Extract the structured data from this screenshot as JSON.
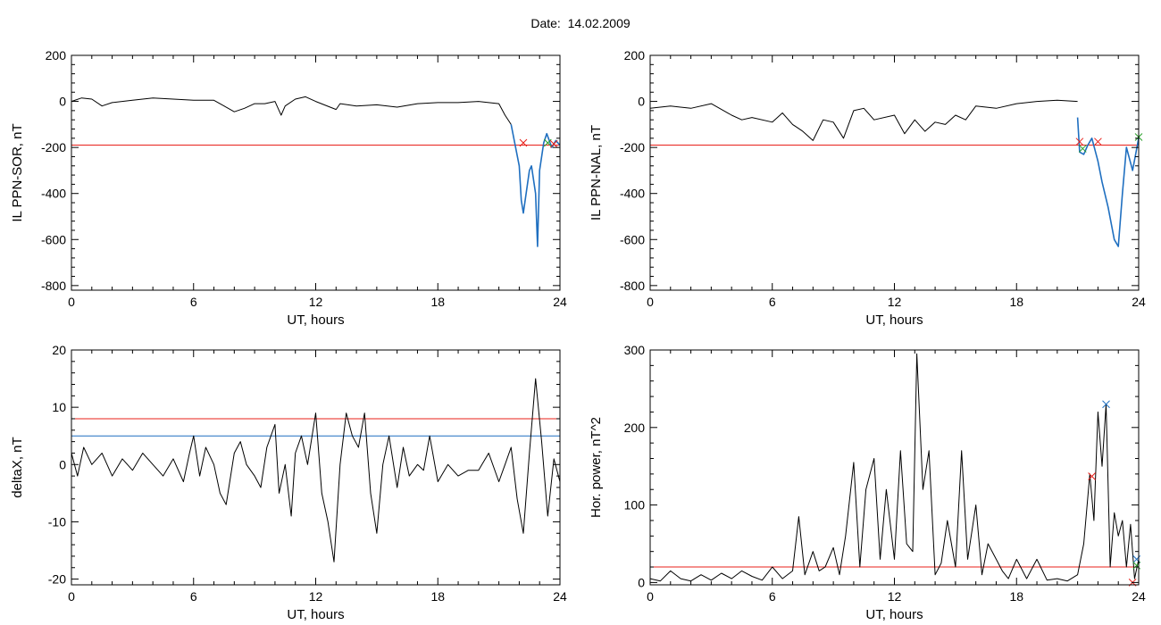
{
  "figure": {
    "title": "Date:  14.02.2009"
  },
  "colors": {
    "line": "#000000",
    "threshold_red": "#e8201a",
    "threshold_blue": "#1f6fc0",
    "marker_green": "#2aa02a",
    "overlay_blue": "#1f6fc0"
  },
  "chart_data": [
    {
      "id": "sor",
      "type": "line",
      "ylabel": "IL PPN-SOR, nT",
      "xlabel": "UT, hours",
      "xlim": [
        0,
        24
      ],
      "ylim": [
        -820,
        200
      ],
      "xticks": [
        0,
        6,
        12,
        18,
        24
      ],
      "yticks": [
        -800,
        -600,
        -400,
        -200,
        0,
        200
      ],
      "xtick_labels": [
        "0",
        "6",
        "12",
        "18",
        "24"
      ],
      "ytick_labels": [
        "-800",
        "-600",
        "-400",
        "-200",
        "0",
        "200"
      ],
      "thresholds": [
        {
          "y": -190,
          "color": "red"
        }
      ],
      "series": [
        {
          "color": "black",
          "x": [
            0,
            0.5,
            1,
            1.5,
            2,
            3,
            4,
            5,
            6,
            7,
            7.5,
            8,
            8.5,
            9,
            9.5,
            10,
            10.3,
            10.5,
            11,
            11.5,
            12,
            13,
            13.2,
            14,
            15,
            16,
            17,
            18,
            19,
            20,
            21,
            21.3,
            21.6
          ],
          "y": [
            0,
            15,
            10,
            -20,
            -5,
            5,
            15,
            10,
            5,
            5,
            -20,
            -45,
            -30,
            -10,
            -10,
            0,
            -60,
            -20,
            10,
            20,
            0,
            -35,
            -10,
            -20,
            -15,
            -25,
            -10,
            -5,
            -5,
            0,
            -10,
            -60,
            -100
          ]
        },
        {
          "color": "blue",
          "x": [
            21.6,
            22,
            22.1,
            22.2,
            22.5,
            22.6,
            22.8,
            22.9,
            23,
            23.2,
            23.35,
            23.6,
            23.8,
            24
          ],
          "y": [
            -100,
            -280,
            -430,
            -485,
            -300,
            -280,
            -400,
            -630,
            -300,
            -180,
            -140,
            -200,
            -170,
            -190
          ]
        }
      ],
      "markers": [
        {
          "x": 22.2,
          "y": -180,
          "color": "red",
          "symbol": "x"
        },
        {
          "x": 23.4,
          "y": -180,
          "color": "green",
          "symbol": "x"
        },
        {
          "x": 23.7,
          "y": -185,
          "color": "red",
          "symbol": "x"
        }
      ]
    },
    {
      "id": "nal",
      "type": "line",
      "ylabel": "IL PPN-NAL, nT",
      "xlabel": "UT, hours",
      "xlim": [
        0,
        24
      ],
      "ylim": [
        -820,
        200
      ],
      "xticks": [
        0,
        6,
        12,
        18,
        24
      ],
      "yticks": [
        -800,
        -600,
        -400,
        -200,
        0,
        200
      ],
      "xtick_labels": [
        "0",
        "6",
        "12",
        "18",
        "24"
      ],
      "ytick_labels": [
        "-800",
        "-600",
        "-400",
        "-200",
        "0",
        "200"
      ],
      "thresholds": [
        {
          "y": -190,
          "color": "red"
        }
      ],
      "series": [
        {
          "color": "black",
          "x": [
            0,
            1,
            2,
            3,
            4,
            4.5,
            5,
            6,
            6.5,
            7,
            7.5,
            8,
            8.5,
            9,
            9.5,
            10,
            10.5,
            11,
            12,
            12.5,
            13,
            13.5,
            14,
            14.5,
            15,
            15.5,
            16,
            17,
            18,
            19,
            20,
            21
          ],
          "y": [
            -30,
            -20,
            -30,
            -10,
            -60,
            -80,
            -70,
            -90,
            -50,
            -100,
            -130,
            -170,
            -80,
            -90,
            -160,
            -40,
            -30,
            -80,
            -60,
            -140,
            -80,
            -130,
            -90,
            -100,
            -60,
            -80,
            -20,
            -30,
            -10,
            0,
            5,
            0
          ]
        },
        {
          "color": "blue",
          "x": [
            21,
            21.1,
            21.3,
            21.5,
            21.7,
            22,
            22.2,
            22.5,
            22.8,
            23,
            23.2,
            23.4,
            23.7,
            24
          ],
          "y": [
            -70,
            -220,
            -230,
            -190,
            -160,
            -260,
            -350,
            -460,
            -600,
            -630,
            -400,
            -200,
            -300,
            -160
          ]
        }
      ],
      "markers": [
        {
          "x": 21.1,
          "y": -175,
          "color": "red",
          "symbol": "x"
        },
        {
          "x": 21.25,
          "y": -205,
          "color": "green",
          "symbol": "x"
        },
        {
          "x": 22.0,
          "y": -175,
          "color": "red",
          "symbol": "x"
        },
        {
          "x": 24.0,
          "y": -155,
          "color": "green",
          "symbol": "x"
        }
      ]
    },
    {
      "id": "deltax",
      "type": "line",
      "ylabel": "deltaX, nT",
      "xlabel": "UT, hours",
      "xlim": [
        0,
        24
      ],
      "ylim": [
        -21,
        20
      ],
      "xticks": [
        0,
        6,
        12,
        18,
        24
      ],
      "yticks": [
        -20,
        -10,
        0,
        10,
        20
      ],
      "xtick_labels": [
        "0",
        "6",
        "12",
        "18",
        "24"
      ],
      "ytick_labels": [
        "-20",
        "-10",
        "0",
        "10",
        "20"
      ],
      "thresholds": [
        {
          "y": 8,
          "color": "red"
        },
        {
          "y": 5,
          "color": "blue"
        }
      ],
      "series": [
        {
          "color": "black",
          "x": [
            0,
            0.3,
            0.6,
            1,
            1.5,
            2,
            2.5,
            3,
            3.5,
            4,
            4.5,
            5,
            5.5,
            5.8,
            6,
            6.3,
            6.6,
            7,
            7.3,
            7.6,
            8,
            8.3,
            8.6,
            9,
            9.3,
            9.6,
            10,
            10.2,
            10.5,
            10.8,
            11,
            11.3,
            11.6,
            12,
            12.3,
            12.6,
            12.9,
            13.2,
            13.5,
            13.8,
            14.1,
            14.4,
            14.7,
            15,
            15.3,
            15.6,
            16,
            16.3,
            16.6,
            17,
            17.3,
            17.6,
            18,
            18.5,
            19,
            19.5,
            20,
            20.5,
            21,
            21.3,
            21.6,
            21.9,
            22.2,
            22.5,
            22.8,
            23.1,
            23.4,
            23.7,
            24
          ],
          "y": [
            2,
            -2,
            3,
            0,
            2,
            -2,
            1,
            -1,
            2,
            0,
            -2,
            1,
            -3,
            2,
            5,
            -2,
            3,
            0,
            -5,
            -7,
            2,
            4,
            0,
            -2,
            -4,
            3,
            7,
            -5,
            0,
            -9,
            2,
            5,
            0,
            9,
            -5,
            -10,
            -17,
            0,
            9,
            5,
            3,
            9,
            -5,
            -12,
            0,
            5,
            -4,
            3,
            -2,
            0,
            -1,
            5,
            -3,
            0,
            -2,
            -1,
            -1,
            2,
            -3,
            0,
            3,
            -6,
            -12,
            2,
            15,
            4,
            -9,
            1,
            -3
          ]
        }
      ],
      "markers": []
    },
    {
      "id": "power",
      "type": "line",
      "ylabel": "Hor. power, nT^2",
      "xlabel": "UT, hours",
      "xlim": [
        0,
        24
      ],
      "ylim": [
        -3,
        300
      ],
      "xticks": [
        0,
        6,
        12,
        18,
        24
      ],
      "yticks": [
        0,
        100,
        200,
        300
      ],
      "xtick_labels": [
        "0",
        "6",
        "12",
        "18",
        "24"
      ],
      "ytick_labels": [
        "0",
        "100",
        "200",
        "300"
      ],
      "thresholds": [
        {
          "y": 20,
          "color": "red"
        }
      ],
      "series": [
        {
          "color": "black",
          "x": [
            0,
            0.5,
            1,
            1.5,
            2,
            2.5,
            3,
            3.5,
            4,
            4.5,
            5,
            5.5,
            6,
            6.5,
            7,
            7.3,
            7.6,
            8,
            8.3,
            8.6,
            9,
            9.3,
            9.6,
            10,
            10.3,
            10.6,
            11,
            11.3,
            11.6,
            12,
            12.3,
            12.6,
            12.9,
            13.1,
            13.4,
            13.7,
            14,
            14.3,
            14.6,
            15,
            15.3,
            15.6,
            16,
            16.3,
            16.6,
            17,
            17.3,
            17.6,
            18,
            18.5,
            19,
            19.5,
            20,
            20.5,
            21,
            21.3,
            21.6,
            21.8,
            22,
            22.2,
            22.4,
            22.6,
            22.8,
            23,
            23.2,
            23.4,
            23.6,
            23.8,
            24
          ],
          "y": [
            5,
            2,
            15,
            5,
            2,
            10,
            3,
            12,
            5,
            15,
            8,
            3,
            20,
            5,
            15,
            85,
            10,
            40,
            15,
            20,
            45,
            10,
            60,
            155,
            20,
            120,
            160,
            30,
            120,
            30,
            170,
            50,
            40,
            295,
            120,
            170,
            10,
            25,
            80,
            20,
            170,
            30,
            100,
            10,
            50,
            30,
            15,
            5,
            30,
            5,
            30,
            3,
            5,
            2,
            10,
            50,
            140,
            80,
            220,
            150,
            230,
            20,
            90,
            60,
            80,
            20,
            75,
            5,
            30
          ]
        }
      ],
      "markers": [
        {
          "x": 21.7,
          "y": 137,
          "color": "red",
          "symbol": "x"
        },
        {
          "x": 22.4,
          "y": 230,
          "color": "blue",
          "symbol": "x"
        },
        {
          "x": 23.7,
          "y": 0,
          "color": "red",
          "symbol": "x"
        },
        {
          "x": 23.9,
          "y": 30,
          "color": "blue",
          "symbol": "x"
        },
        {
          "x": 23.9,
          "y": 22,
          "color": "green",
          "symbol": "x"
        }
      ]
    }
  ]
}
